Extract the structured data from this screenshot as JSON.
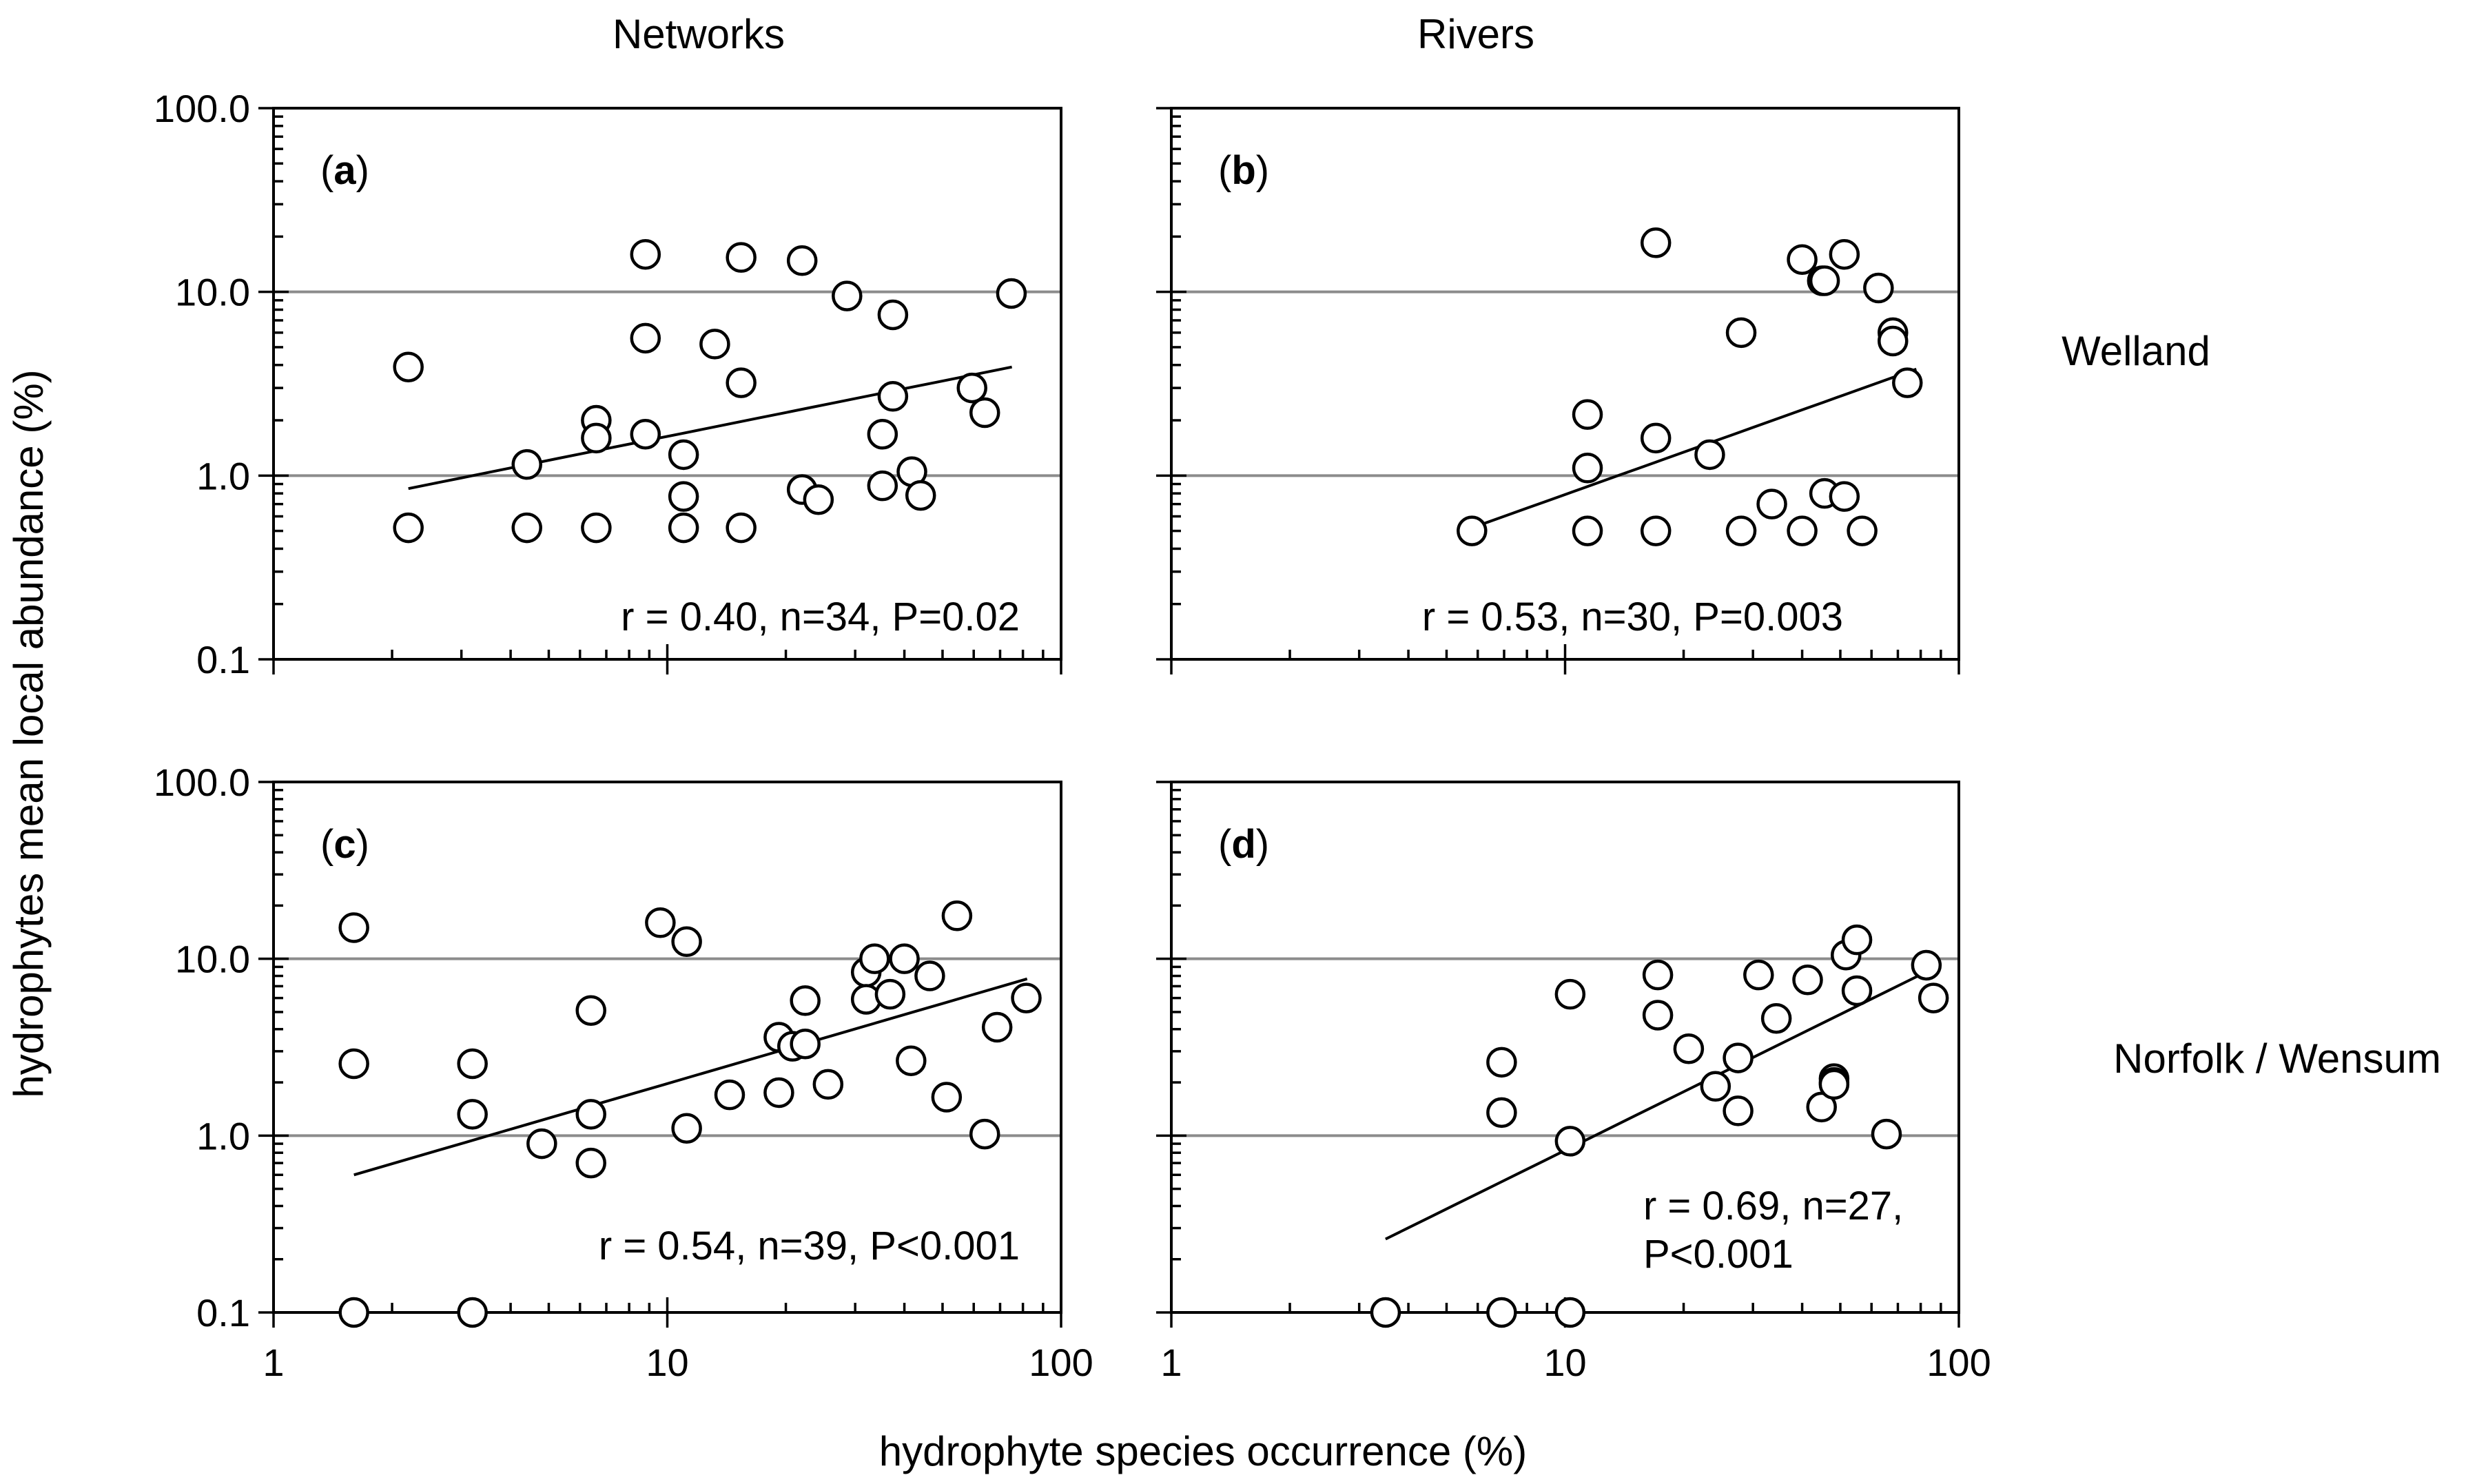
{
  "figure": {
    "column_titles": [
      "Networks",
      "Rivers"
    ],
    "row_titles": [
      "Welland",
      "Norfolk  / Wensum"
    ],
    "ylabel": "hydrophytes mean local abundance (%)",
    "xlabel": "hydrophyte species occurrence (%)",
    "y_tick_labels": [
      "100.0",
      "10.0",
      "1.0",
      "0.1"
    ],
    "x_tick_labels": [
      "1",
      "10",
      "100"
    ]
  },
  "colors": {
    "marker_fill": "#ffffff",
    "marker_stroke": "#000000",
    "gridline": "#8c8c8c",
    "trendline": "#000000"
  },
  "chart_data": [
    {
      "type": "scatter",
      "label_letter": "a",
      "label_open": "(",
      "label_close": ")",
      "column": "Networks",
      "row": "Welland",
      "xscale": "log",
      "yscale": "log",
      "xlim": [
        1,
        100
      ],
      "ylim": [
        0.1,
        100
      ],
      "grid_y": [
        1,
        10
      ],
      "stats": [
        "r = 0.40, n=34, P=0.02"
      ],
      "trendline": {
        "x": [
          2.2,
          75
        ],
        "y": [
          0.85,
          3.9
        ]
      },
      "points": [
        [
          2.2,
          3.9
        ],
        [
          2.2,
          0.52
        ],
        [
          4.4,
          1.15
        ],
        [
          4.4,
          0.52
        ],
        [
          6.6,
          2.0
        ],
        [
          6.6,
          1.6
        ],
        [
          6.6,
          0.52
        ],
        [
          8.8,
          16.0
        ],
        [
          8.8,
          5.6
        ],
        [
          8.8,
          1.68
        ],
        [
          11.0,
          1.3
        ],
        [
          11.0,
          0.77
        ],
        [
          11.0,
          0.52
        ],
        [
          13.2,
          5.2
        ],
        [
          15.4,
          15.4
        ],
        [
          15.4,
          3.2
        ],
        [
          15.4,
          0.52
        ],
        [
          22.0,
          14.8
        ],
        [
          22.0,
          0.84
        ],
        [
          24.2,
          0.74
        ],
        [
          28.6,
          9.5
        ],
        [
          35.2,
          1.68
        ],
        [
          35.2,
          0.88
        ],
        [
          37.4,
          7.5
        ],
        [
          37.4,
          2.7
        ],
        [
          41.8,
          1.05
        ],
        [
          44.0,
          0.78
        ],
        [
          59.4,
          3.0
        ],
        [
          64.0,
          2.2
        ],
        [
          74.8,
          9.8
        ]
      ]
    },
    {
      "type": "scatter",
      "label_letter": "b",
      "label_open": "(",
      "label_close": ")",
      "column": "Rivers",
      "row": "Welland",
      "xscale": "log",
      "yscale": "log",
      "xlim": [
        1,
        100
      ],
      "ylim": [
        0.1,
        100
      ],
      "grid_y": [
        1,
        10
      ],
      "stats": [
        "r = 0.53, n=30, P=0.003"
      ],
      "trendline": {
        "x": [
          5.8,
          78
        ],
        "y": [
          0.52,
          3.8
        ]
      },
      "points": [
        [
          5.8,
          0.5
        ],
        [
          11.4,
          2.15
        ],
        [
          11.4,
          1.1
        ],
        [
          11.4,
          0.5
        ],
        [
          17.0,
          18.5
        ],
        [
          17.0,
          1.6
        ],
        [
          17.0,
          0.5
        ],
        [
          23.3,
          1.3
        ],
        [
          28.0,
          6.0
        ],
        [
          28.0,
          0.5
        ],
        [
          33.5,
          0.7
        ],
        [
          40.0,
          15.0
        ],
        [
          40.0,
          0.5
        ],
        [
          45.0,
          11.5
        ],
        [
          45.6,
          11.5
        ],
        [
          45.6,
          0.8
        ],
        [
          51.2,
          16.0
        ],
        [
          51.2,
          0.77
        ],
        [
          56.8,
          0.5
        ],
        [
          62.5,
          10.5
        ],
        [
          68.0,
          6.0
        ],
        [
          68.0,
          5.4
        ],
        [
          74.0,
          3.2
        ]
      ]
    },
    {
      "type": "scatter",
      "label_letter": "c",
      "label_open": "(",
      "label_close": ")",
      "column": "Networks",
      "row": "Norfolk / Wensum",
      "xscale": "log",
      "yscale": "log",
      "xlim": [
        1,
        100
      ],
      "ylim": [
        0.1,
        100
      ],
      "grid_y": [
        1,
        10
      ],
      "stats": [
        "r = 0.54, n=39, P<0.001"
      ],
      "trendline": {
        "x": [
          1.6,
          82
        ],
        "y": [
          0.6,
          7.7
        ]
      },
      "points": [
        [
          1.6,
          15.0
        ],
        [
          1.6,
          2.55
        ],
        [
          1.6,
          0.1
        ],
        [
          3.2,
          2.55
        ],
        [
          3.2,
          1.32
        ],
        [
          3.2,
          0.1
        ],
        [
          4.8,
          0.9
        ],
        [
          6.4,
          5.1
        ],
        [
          6.4,
          1.32
        ],
        [
          6.4,
          0.7
        ],
        [
          9.6,
          16.0
        ],
        [
          11.2,
          12.5
        ],
        [
          11.2,
          1.1
        ],
        [
          14.4,
          1.7
        ],
        [
          19.2,
          3.6
        ],
        [
          19.2,
          1.75
        ],
        [
          20.8,
          3.2
        ],
        [
          22.4,
          5.8
        ],
        [
          22.4,
          3.3
        ],
        [
          25.6,
          1.95
        ],
        [
          32.0,
          8.4
        ],
        [
          32.0,
          5.9
        ],
        [
          33.6,
          10.0
        ],
        [
          36.8,
          6.3
        ],
        [
          40.0,
          10.0
        ],
        [
          41.6,
          2.65
        ],
        [
          46.4,
          8.0
        ],
        [
          51.2,
          1.65
        ],
        [
          54.4,
          17.5
        ],
        [
          64.0,
          1.02
        ],
        [
          68.8,
          4.1
        ],
        [
          81.6,
          6.0
        ]
      ]
    },
    {
      "type": "scatter",
      "label_letter": "d",
      "label_open": "(",
      "label_close": ")",
      "column": "Rivers",
      "row": "Norfolk / Wensum",
      "xscale": "log",
      "yscale": "log",
      "xlim": [
        1,
        100
      ],
      "ylim": [
        0.1,
        100
      ],
      "grid_y": [
        1,
        10
      ],
      "stats": [
        "r = 0.69, n=27,",
        "P<0.001"
      ],
      "trendline": {
        "x": [
          3.5,
          85
        ],
        "y": [
          0.26,
          8.7
        ]
      },
      "points": [
        [
          3.5,
          0.1
        ],
        [
          6.9,
          2.6
        ],
        [
          6.9,
          1.35
        ],
        [
          6.9,
          0.1
        ],
        [
          10.3,
          6.3
        ],
        [
          10.3,
          0.93
        ],
        [
          10.3,
          0.1
        ],
        [
          17.2,
          8.1
        ],
        [
          17.2,
          4.8
        ],
        [
          20.6,
          3.1
        ],
        [
          24.1,
          1.9
        ],
        [
          27.5,
          2.75
        ],
        [
          27.5,
          1.38
        ],
        [
          31.0,
          8.1
        ],
        [
          34.4,
          4.6
        ],
        [
          41.3,
          7.6
        ],
        [
          44.8,
          1.45
        ],
        [
          48.2,
          2.1
        ],
        [
          48.2,
          2.0
        ],
        [
          48.2,
          1.95
        ],
        [
          51.7,
          10.5
        ],
        [
          55.1,
          12.8
        ],
        [
          55.1,
          6.6
        ],
        [
          65.5,
          1.02
        ],
        [
          82.7,
          9.2
        ],
        [
          86.2,
          6.0
        ]
      ]
    }
  ]
}
